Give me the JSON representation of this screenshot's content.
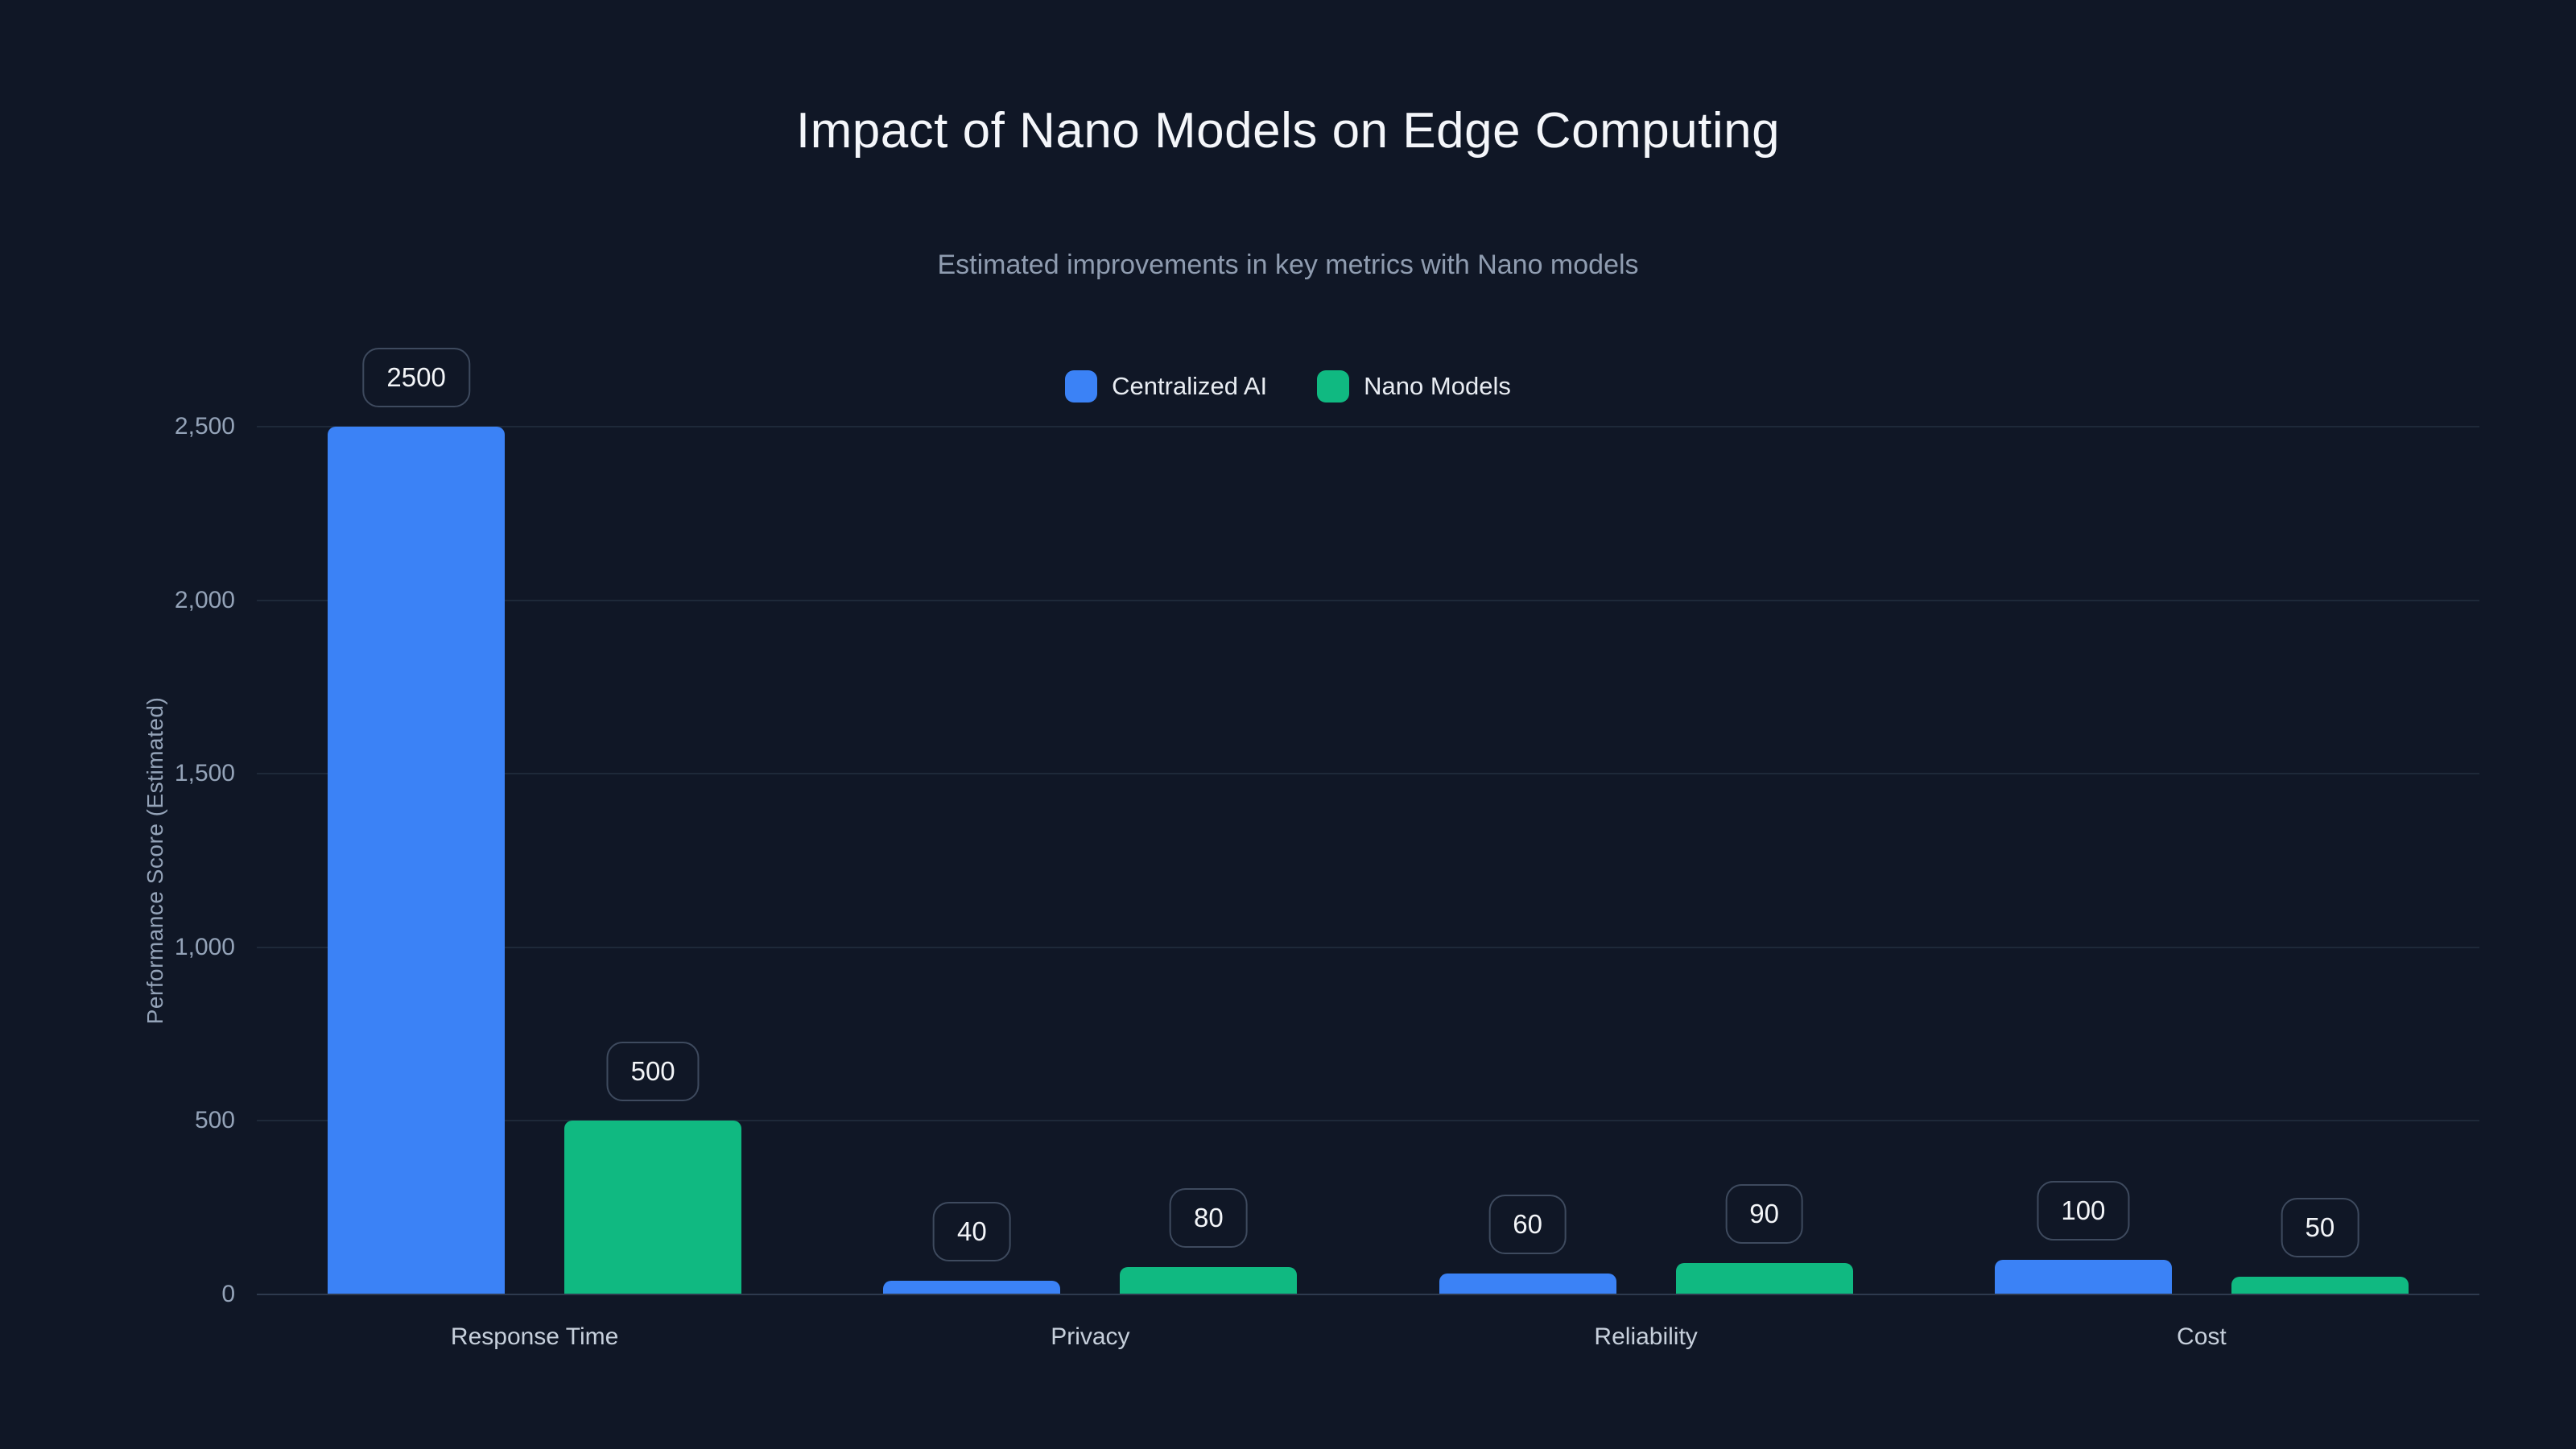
{
  "colors": {
    "background": "#101726",
    "grid": "#1e2939",
    "axis_line": "#2e3a4e",
    "tick_text": "#94a3b8",
    "category_text": "#c6cfdb",
    "title_text": "#f4f6fa",
    "subtitle_text": "#8f9cb0",
    "legend_text": "#e8ecf2",
    "badge_border": "#3e4a5e",
    "badge_text": "#f3f5f8",
    "series_blue": "#3b82f6",
    "series_green": "#10b981"
  },
  "chart_data": {
    "type": "bar",
    "title": "Impact of Nano Models on Edge Computing",
    "subtitle": "Estimated improvements in key metrics with Nano models",
    "xlabel": "",
    "ylabel": "Performance Score (Estimated)",
    "ylim": [
      0,
      2500
    ],
    "grid": true,
    "legend_position": "top",
    "categories": [
      "Response Time",
      "Privacy",
      "Reliability",
      "Cost"
    ],
    "series": [
      {
        "name": "Centralized AI",
        "color": "#3b82f6",
        "values": [
          2500,
          40,
          60,
          100
        ]
      },
      {
        "name": "Nano Models",
        "color": "#10b981",
        "values": [
          500,
          80,
          90,
          50
        ]
      }
    ],
    "value_labels": [
      [
        "2500",
        "500"
      ],
      [
        "40",
        "80"
      ],
      [
        "60",
        "90"
      ],
      [
        "100",
        "50"
      ]
    ],
    "yticks": [
      {
        "label": "0",
        "value": 0
      },
      {
        "label": "500",
        "value": 500
      },
      {
        "label": "1,000",
        "value": 1000
      },
      {
        "label": "1,500",
        "value": 1500
      },
      {
        "label": "2,000",
        "value": 2000
      },
      {
        "label": "2,500",
        "value": 2500
      }
    ]
  }
}
